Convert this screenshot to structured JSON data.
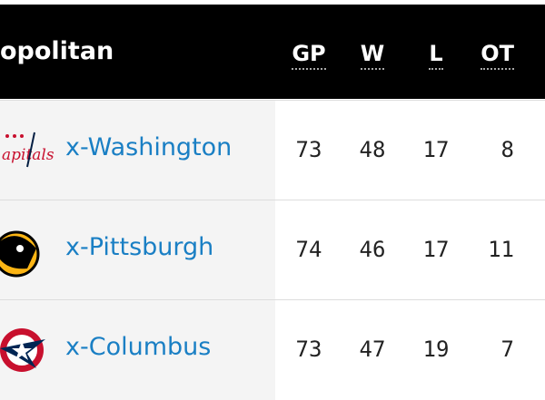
{
  "header": {
    "title": "opolitan",
    "columns": [
      "GP",
      "W",
      "L",
      "OT"
    ]
  },
  "table": {
    "rows": [
      {
        "team": "x-Washington",
        "stats": [
          73,
          48,
          17,
          8
        ]
      },
      {
        "team": "x-Pittsburgh",
        "stats": [
          74,
          46,
          17,
          11
        ]
      },
      {
        "team": "x-Columbus",
        "stats": [
          73,
          47,
          19,
          7
        ]
      }
    ]
  }
}
